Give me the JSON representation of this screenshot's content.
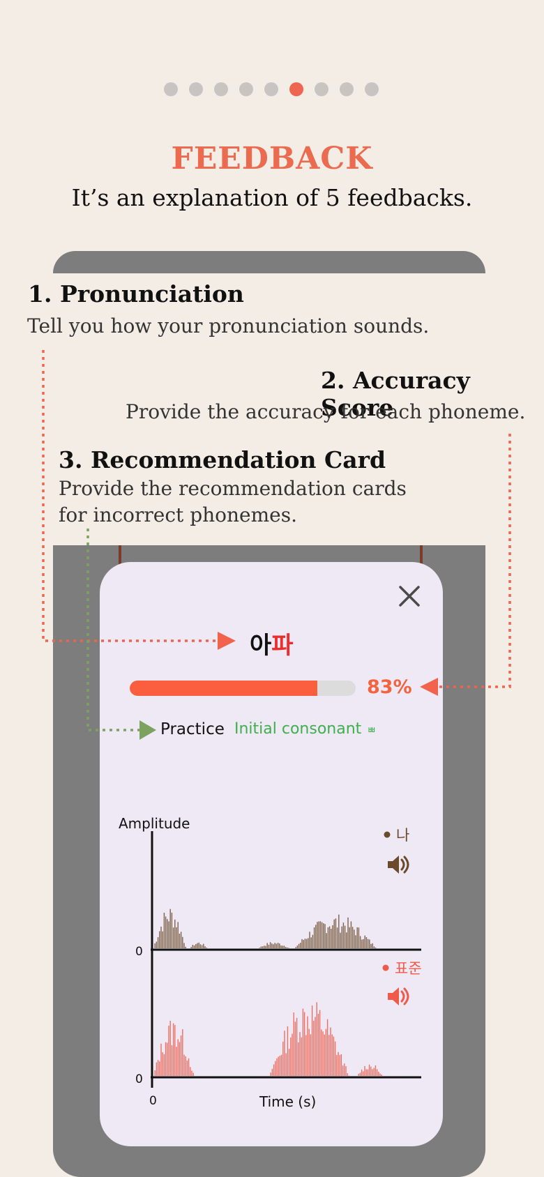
{
  "pagination": {
    "total": 9,
    "active_index": 5
  },
  "header": {
    "title": "FEEDBACK",
    "subtitle": "It’s an explanation of 5 feedbacks."
  },
  "annotations": {
    "pronunciation": {
      "heading": "1. Pronunciation",
      "text": "Tell you how your pronunciation sounds."
    },
    "accuracy": {
      "heading": "2. Accuracy Score",
      "text": "Provide the accuracy for each phoneme."
    },
    "recommendation": {
      "heading": "3. Recommendation Card",
      "line1": "Provide the recommendation cards",
      "line2": "for incorrect phonemes."
    }
  },
  "card": {
    "word_part1": "아",
    "word_part2": "파",
    "accuracy_value": 83,
    "accuracy_text": "83%",
    "practice_label": "Practice",
    "recommendation_label": "Initial consonant",
    "recommendation_phoneme": "ㅃ"
  },
  "chart_data": {
    "type": "area",
    "ylabel": "Amplitude",
    "xlabel": "Time (s)",
    "x_tick_labels": [
      "0"
    ],
    "y_tick_labels": [
      "0",
      "0"
    ],
    "series": [
      {
        "name": "나",
        "color": "#6b4a2b"
      },
      {
        "name": "표준",
        "color": "#f05a4a"
      }
    ]
  },
  "colors": {
    "accent": "#ea6b50",
    "score": "#f2633f",
    "green": "#3fae4f",
    "user_series": "#6b4a2b",
    "standard_series": "#f05a4a"
  }
}
